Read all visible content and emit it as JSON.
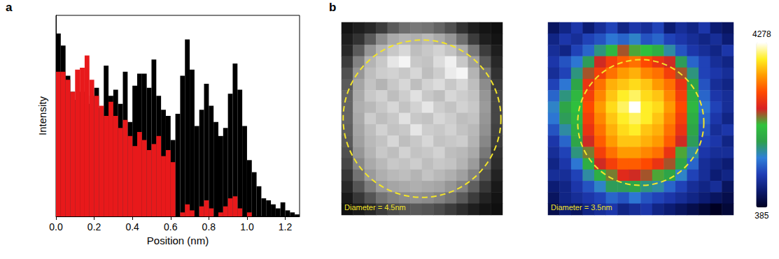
{
  "chart_data": [
    {
      "type": "bar",
      "panel": "a",
      "x_label": "Position (nm)",
      "y_label": "Intensity",
      "bins": [
        0,
        0.025,
        0.05,
        0.075,
        0.1,
        0.125,
        0.15,
        0.175,
        0.2,
        0.225,
        0.25,
        0.275,
        0.3,
        0.325,
        0.35,
        0.375,
        0.4,
        0.425,
        0.45,
        0.475,
        0.5,
        0.525,
        0.55,
        0.575,
        0.6,
        0.625,
        0.65,
        0.675,
        0.7,
        0.725,
        0.75,
        0.775,
        0.8,
        0.825,
        0.85,
        0.875,
        0.9,
        0.925,
        0.95,
        0.975,
        1,
        1.025,
        1.05,
        1.075,
        1.1,
        1.125,
        1.15,
        1.175,
        1.2,
        1.225,
        1.25,
        1.275
      ],
      "series": [
        {
          "color": "#000000",
          "values": [
            91,
            85,
            70,
            62,
            58,
            62,
            56,
            60,
            64,
            54,
            75,
            60,
            63,
            56,
            72,
            47,
            65,
            71,
            71,
            64,
            78,
            60,
            53,
            50,
            38,
            51,
            70,
            88,
            73,
            45,
            53,
            66,
            55,
            47,
            40,
            44,
            61,
            76,
            63,
            45,
            28,
            22,
            15,
            9,
            8,
            6,
            4,
            7,
            3,
            2,
            1
          ]
        },
        {
          "color": "#e8191b",
          "values": [
            72,
            72,
            68,
            62,
            73,
            74,
            80,
            68,
            60,
            55,
            50,
            57,
            50,
            44,
            48,
            40,
            35,
            42,
            38,
            33,
            36,
            40,
            30,
            33,
            27,
            0,
            2,
            6,
            3,
            0,
            5,
            8,
            4,
            0,
            2,
            5,
            9,
            10,
            4,
            0,
            2,
            0,
            0,
            0,
            0,
            0,
            0,
            0,
            0,
            0,
            0
          ]
        }
      ],
      "xlim": [
        0,
        1.275
      ],
      "xticks": [
        {
          "value": 0,
          "label": "0.0"
        },
        0.2,
        0.4,
        0.6,
        0.8,
        {
          "value": 1,
          "label": "1.0"
        },
        1.2
      ],
      "ylim": [
        0,
        100
      ],
      "tick_labels": "x",
      "grid": false
    },
    {
      "type": "heatmap",
      "panel": "b",
      "color": "gray",
      "annotation": "Diameter = 4.5nm",
      "color_range": [
        0,
        255
      ],
      "cells": [
        [
          20,
          30,
          40,
          60,
          90,
          110,
          120,
          115,
          100,
          80,
          50,
          30,
          20,
          15
        ],
        [
          30,
          50,
          90,
          140,
          170,
          180,
          175,
          185,
          170,
          150,
          110,
          60,
          30,
          20
        ],
        [
          40,
          90,
          150,
          180,
          200,
          215,
          190,
          200,
          210,
          195,
          170,
          120,
          60,
          30
        ],
        [
          60,
          130,
          180,
          200,
          230,
          245,
          200,
          195,
          220,
          240,
          200,
          160,
          90,
          40
        ],
        [
          80,
          150,
          190,
          205,
          210,
          200,
          215,
          190,
          205,
          235,
          245,
          180,
          120,
          50
        ],
        [
          90,
          165,
          195,
          180,
          200,
          215,
          190,
          210,
          220,
          200,
          215,
          190,
          140,
          60
        ],
        [
          100,
          170,
          200,
          210,
          190,
          205,
          225,
          200,
          190,
          215,
          205,
          195,
          150,
          70
        ],
        [
          100,
          175,
          185,
          200,
          215,
          195,
          210,
          230,
          205,
          195,
          210,
          200,
          155,
          70
        ],
        [
          100,
          170,
          205,
          190,
          200,
          225,
          200,
          195,
          215,
          205,
          190,
          195,
          150,
          70
        ],
        [
          95,
          165,
          190,
          210,
          195,
          200,
          230,
          205,
          200,
          210,
          195,
          185,
          145,
          65
        ],
        [
          90,
          160,
          185,
          195,
          215,
          190,
          200,
          215,
          195,
          200,
          205,
          180,
          135,
          60
        ],
        [
          80,
          150,
          180,
          200,
          190,
          210,
          195,
          200,
          210,
          190,
          185,
          170,
          120,
          50
        ],
        [
          70,
          135,
          170,
          185,
          200,
          195,
          205,
          190,
          200,
          195,
          180,
          155,
          100,
          45
        ],
        [
          55,
          115,
          155,
          175,
          185,
          190,
          180,
          195,
          185,
          175,
          160,
          130,
          80,
          35
        ],
        [
          40,
          85,
          125,
          155,
          165,
          170,
          175,
          170,
          165,
          150,
          130,
          95,
          55,
          25
        ],
        [
          25,
          55,
          85,
          115,
          130,
          140,
          145,
          140,
          130,
          115,
          90,
          60,
          35,
          20
        ],
        [
          15,
          25,
          40,
          60,
          75,
          85,
          90,
          85,
          75,
          60,
          45,
          30,
          20,
          15
        ]
      ]
    },
    {
      "type": "heatmap",
      "color": "jet",
      "annotation": "Diameter = 3.5nm",
      "color_range": [
        385,
        4278
      ],
      "color_ticks": [
        385,
        4278
      ],
      "cells": [
        [
          700,
          900,
          1100,
          800,
          1000,
          1200,
          900,
          1100,
          1000,
          1200,
          800,
          1000,
          900,
          1100,
          800,
          700
        ],
        [
          900,
          1100,
          1000,
          1200,
          1300,
          1500,
          1400,
          1600,
          1300,
          1400,
          1200,
          1100,
          1000,
          900,
          1000,
          800
        ],
        [
          1000,
          900,
          1200,
          1400,
          1800,
          2200,
          2600,
          2400,
          2300,
          2100,
          1700,
          1300,
          1100,
          1000,
          900,
          1100
        ],
        [
          1100,
          1300,
          1500,
          1900,
          2700,
          3000,
          3200,
          3300,
          3100,
          2900,
          2700,
          1900,
          1400,
          1200,
          1000,
          900
        ],
        [
          1000,
          1200,
          1800,
          2600,
          3000,
          3300,
          3500,
          3600,
          3400,
          3300,
          3000,
          2600,
          1800,
          1200,
          1100,
          1000
        ],
        [
          1200,
          1500,
          2000,
          2900,
          3300,
          3600,
          3700,
          3800,
          3700,
          3500,
          3300,
          2900,
          2000,
          1300,
          1000,
          900
        ],
        [
          1400,
          1800,
          2200,
          3000,
          3400,
          3700,
          3900,
          4000,
          3800,
          3700,
          3400,
          3000,
          2100,
          1400,
          1100,
          1000
        ],
        [
          1600,
          2000,
          2300,
          3100,
          3500,
          3800,
          4000,
          4278,
          3900,
          3800,
          3500,
          3100,
          2200,
          1500,
          1200,
          1000
        ],
        [
          1500,
          1900,
          2200,
          3000,
          3400,
          3700,
          3900,
          4000,
          3900,
          3700,
          3400,
          3000,
          2100,
          1400,
          1100,
          900
        ],
        [
          1300,
          1700,
          2100,
          2900,
          3300,
          3600,
          3800,
          3900,
          3700,
          3600,
          3300,
          2900,
          2000,
          1300,
          1000,
          1100
        ],
        [
          1100,
          1400,
          2000,
          2700,
          3200,
          3500,
          3700,
          3700,
          3600,
          3500,
          3200,
          2700,
          1900,
          1200,
          1100,
          900
        ],
        [
          1000,
          1200,
          1800,
          2500,
          3000,
          3300,
          3500,
          3500,
          3400,
          3300,
          2900,
          2400,
          1700,
          1100,
          1000,
          1000
        ],
        [
          900,
          1100,
          1500,
          2100,
          2700,
          3000,
          3200,
          3200,
          3100,
          2900,
          2600,
          2000,
          1400,
          1000,
          900,
          800
        ],
        [
          1000,
          1000,
          1200,
          1700,
          2100,
          2500,
          2800,
          2700,
          2600,
          2400,
          2000,
          1600,
          1200,
          1000,
          800,
          900
        ],
        [
          800,
          900,
          1100,
          1300,
          1600,
          1900,
          1900,
          2000,
          1800,
          1700,
          1400,
          1200,
          1000,
          900,
          1000,
          700
        ],
        [
          700,
          900,
          1000,
          1100,
          1200,
          1400,
          1300,
          1500,
          1300,
          1200,
          1100,
          1000,
          900,
          800,
          700,
          600
        ],
        [
          600,
          800,
          700,
          900,
          1000,
          1100,
          900,
          1000,
          1100,
          900,
          800,
          700,
          600,
          500,
          385,
          500
        ]
      ]
    }
  ]
}
